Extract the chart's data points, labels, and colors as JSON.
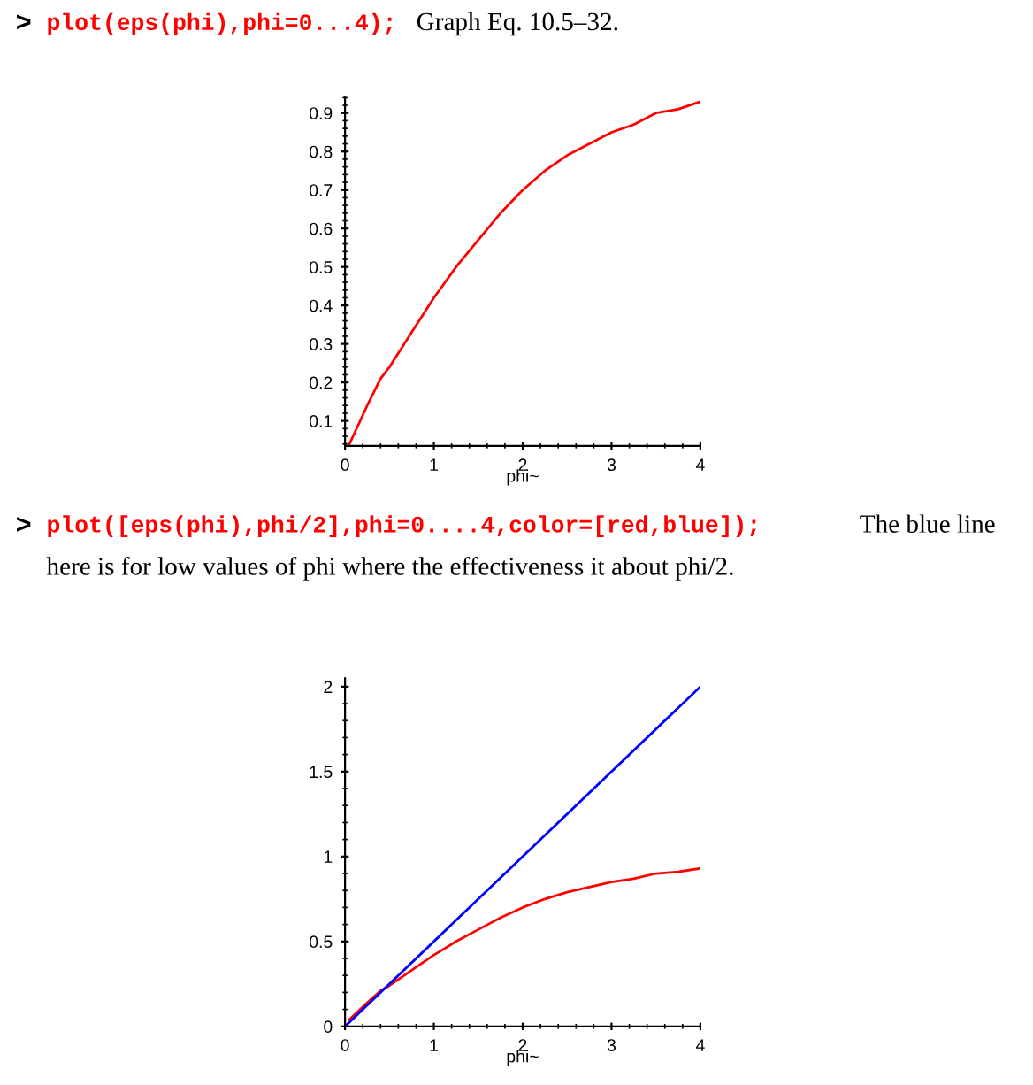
{
  "chart_data": [
    {
      "type": "line",
      "xlabel": "phi~",
      "annotations": [
        ">",
        "plot(eps(phi),phi=0...4);",
        "Graph Eq. 10.5–32."
      ],
      "xlim": [
        0,
        4
      ],
      "xticks": [
        0,
        1,
        2,
        3,
        4
      ],
      "ylim": [
        0.035,
        0.94
      ],
      "yticks": [
        0.1,
        0.2,
        0.3,
        0.4,
        0.5,
        0.6,
        0.7,
        0.8,
        0.9
      ],
      "grid": false,
      "series": [
        {
          "color": "#ff0000",
          "x": [
            0.05,
            0.25,
            0.4,
            0.5,
            0.75,
            1,
            1.25,
            1.5,
            1.75,
            2,
            2.25,
            2.5,
            2.75,
            3,
            3.25,
            3.5,
            3.75,
            4
          ],
          "values": [
            0.04,
            0.14,
            0.21,
            0.24,
            0.33,
            0.42,
            0.5,
            0.57,
            0.64,
            0.7,
            0.75,
            0.79,
            0.82,
            0.85,
            0.87,
            0.9,
            0.91,
            0.93
          ]
        }
      ]
    },
    {
      "type": "line",
      "xlabel": "phi~",
      "annotations": [
        ">",
        "plot([eps(phi),phi/2],phi=0....4,color=[red,blue]);",
        "The blue line",
        "here is for low values of phi where the effectiveness it about phi/2."
      ],
      "xlim": [
        0,
        4
      ],
      "xticks": [
        0,
        1,
        2,
        3,
        4
      ],
      "ylim": [
        0,
        2.05
      ],
      "yticks": [
        0,
        0.5,
        1,
        1.5,
        2
      ],
      "grid": false,
      "series": [
        {
          "color": "#ff0000",
          "x": [
            0.05,
            0.25,
            0.4,
            0.5,
            0.75,
            1,
            1.25,
            1.5,
            1.75,
            2,
            2.25,
            2.5,
            2.75,
            3,
            3.25,
            3.5,
            3.75,
            4
          ],
          "values": [
            0.04,
            0.14,
            0.21,
            0.24,
            0.33,
            0.42,
            0.5,
            0.57,
            0.64,
            0.7,
            0.75,
            0.79,
            0.82,
            0.85,
            0.87,
            0.9,
            0.91,
            0.93
          ]
        },
        {
          "color": "#0000ff",
          "x": [
            0,
            4
          ],
          "values": [
            0,
            2
          ]
        }
      ]
    }
  ]
}
